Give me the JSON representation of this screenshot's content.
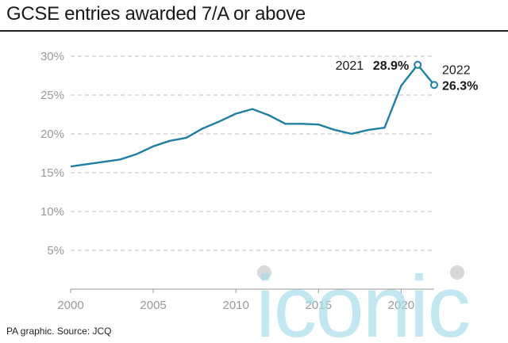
{
  "title": "GCSE entries awarded 7/A or above",
  "source": "PA graphic. Source: JCQ",
  "watermark": "iconic",
  "colors": {
    "line": "#1f7fa3",
    "grid": "#bdbdbd",
    "tick": "#9a9a9a",
    "watermark": "#a9ddeb"
  },
  "chart_data": {
    "type": "line",
    "title": "GCSE entries awarded 7/A or above",
    "xlabel": "",
    "ylabel": "",
    "x": [
      2000,
      2001,
      2002,
      2003,
      2004,
      2005,
      2006,
      2007,
      2008,
      2009,
      2010,
      2011,
      2012,
      2013,
      2014,
      2015,
      2016,
      2017,
      2018,
      2019,
      2020,
      2021,
      2022
    ],
    "values": [
      15.8,
      16.1,
      16.4,
      16.7,
      17.4,
      18.4,
      19.1,
      19.5,
      20.7,
      21.6,
      22.6,
      23.2,
      22.4,
      21.3,
      21.3,
      21.2,
      20.5,
      20.0,
      20.5,
      20.8,
      26.2,
      28.9,
      26.3
    ],
    "xlim": [
      2000,
      2022
    ],
    "ylim": [
      0,
      30
    ],
    "xticks": [
      "2000",
      "2005",
      "2010",
      "2015",
      "2020"
    ],
    "yticks": [
      "5%",
      "10%",
      "15%",
      "20%",
      "25%",
      "30%"
    ],
    "grid": "horizontal dashed",
    "annotations": [
      {
        "year": "2021",
        "value": "28.9%"
      },
      {
        "year": "2022",
        "value": "26.3%"
      }
    ]
  }
}
